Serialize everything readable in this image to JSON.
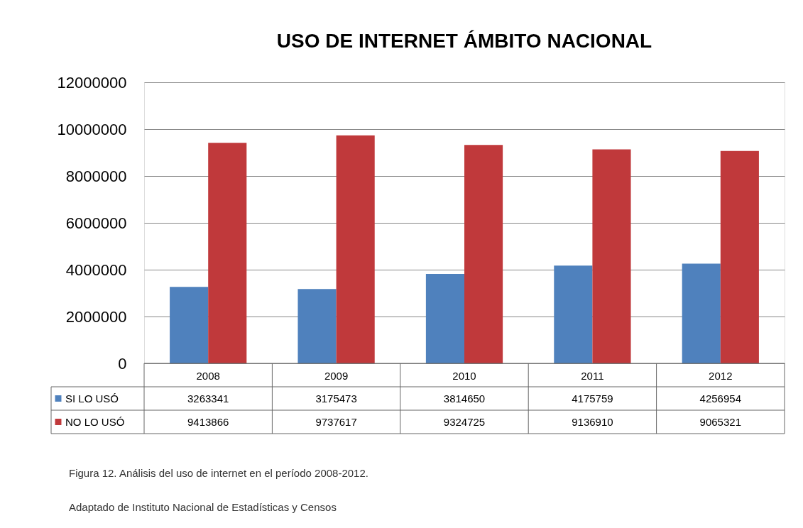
{
  "chart_data": {
    "type": "bar",
    "title": "USO DE INTERNET ÁMBITO NACIONAL",
    "categories": [
      "2008",
      "2009",
      "2010",
      "2011",
      "2012"
    ],
    "series": [
      {
        "name": "SI LO USÓ",
        "color": "#4f81bd",
        "values": [
          3263341,
          3175473,
          3814650,
          4175759,
          4256954
        ]
      },
      {
        "name": "NO LO USÓ",
        "color": "#c0393b",
        "values": [
          9413866,
          9737617,
          9324725,
          9136910,
          9065321
        ]
      }
    ],
    "ylim": [
      0,
      12000000
    ],
    "yticks": [
      0,
      2000000,
      4000000,
      6000000,
      8000000,
      10000000,
      12000000
    ],
    "grid": "y",
    "data_labels": true,
    "legend": "bottom left",
    "annotations": [
      "Figura 12. Análisis del uso de internet en el período 2008-2012.",
      "Adaptado de Instituto Nacional de Estadísticas y Censos"
    ]
  }
}
